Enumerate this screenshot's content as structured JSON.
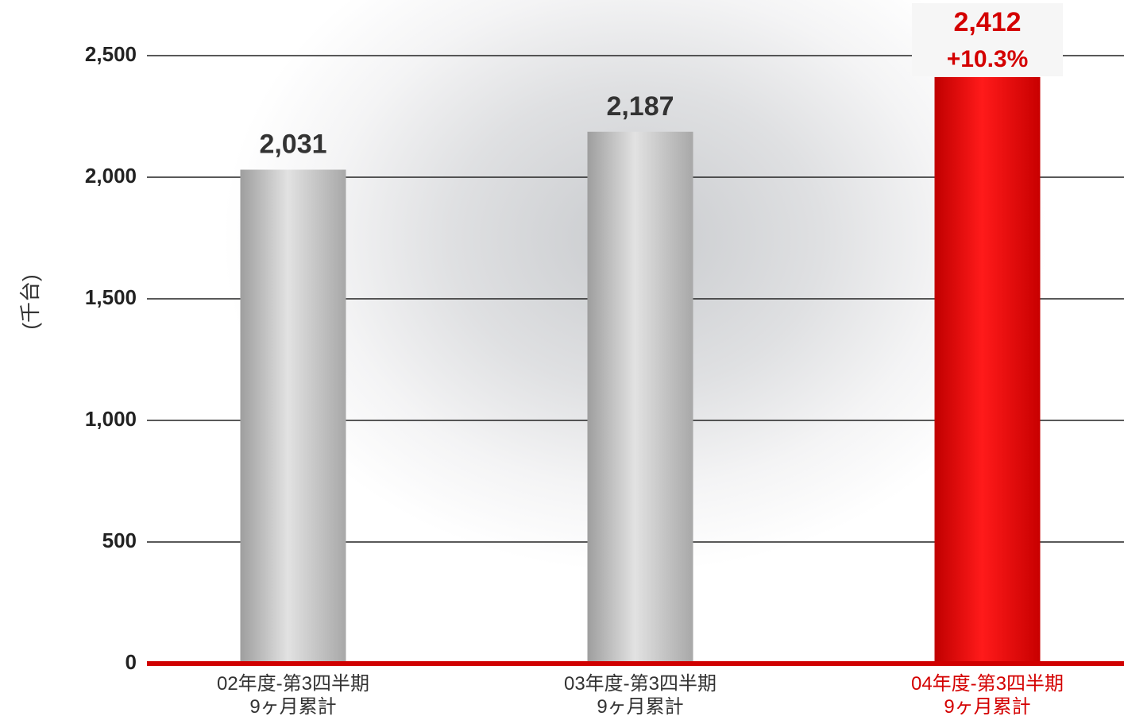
{
  "chart_data": {
    "type": "bar",
    "y_label": "(千台)",
    "categories": [
      "02年度-第3四半期\n9ヶ月累計",
      "03年度-第3四半期\n9ヶ月累計",
      "04年度-第3四半期\n9ヶ月累計"
    ],
    "values": [
      2031,
      2187,
      2412
    ],
    "value_labels": [
      "2,031",
      "2,187",
      "2,412"
    ],
    "annotation": "+10.3%",
    "colors": [
      "#bdbdbd",
      "#bdbdbd",
      "#e00000"
    ],
    "text_colors": [
      "#333333",
      "#333333",
      "#d40000"
    ],
    "ylim": [
      0,
      2500
    ],
    "yticks": [
      0,
      500,
      {
        "value": 1000,
        "label": "1,000"
      },
      {
        "value": 1500,
        "label": "1,500"
      },
      {
        "value": 2000,
        "label": "2,000"
      },
      {
        "value": 2500,
        "label": "2,500"
      }
    ],
    "grid": true
  }
}
